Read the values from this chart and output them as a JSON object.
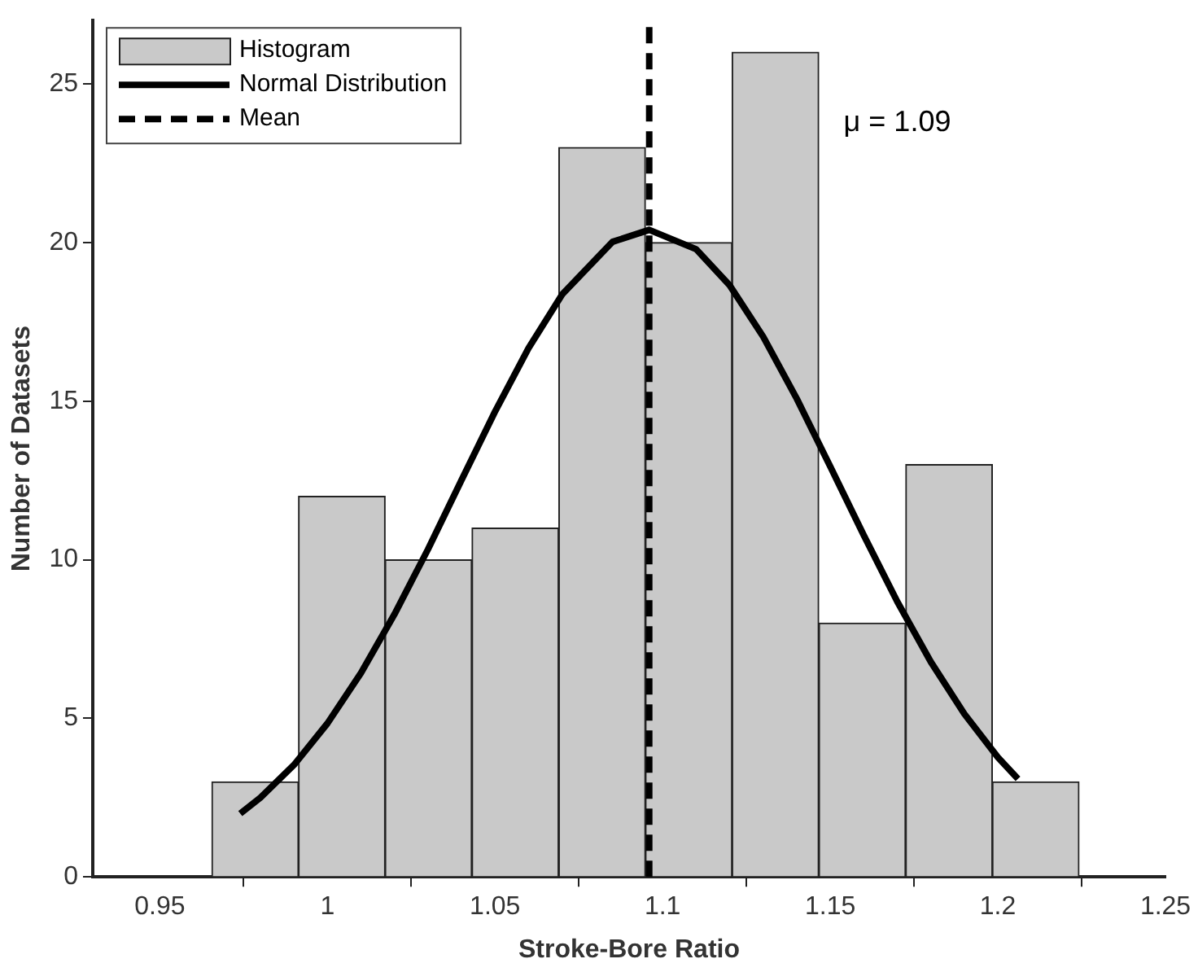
{
  "chart_data": {
    "type": "histogram",
    "xlabel": "Stroke-Bore Ratio",
    "ylabel": "Number of Datasets",
    "series": [
      {
        "name": "Histogram",
        "color": "#c9c9c9",
        "bins": [
          0.9655,
          0.9914,
          1.0172,
          1.0431,
          1.069,
          1.0949,
          1.1207,
          1.1466,
          1.1725,
          1.1984,
          1.2242
        ],
        "values": [
          3,
          12,
          10,
          11,
          23,
          20,
          26,
          8,
          13,
          3
        ]
      },
      {
        "name": "Normal Distribution",
        "type": "line",
        "color": "#000000",
        "line_style": "solid",
        "x": [
          0.974,
          0.98,
          0.99,
          1.0,
          1.01,
          1.02,
          1.03,
          1.04,
          1.05,
          1.06,
          1.07,
          1.085,
          1.096,
          1.11,
          1.12,
          1.13,
          1.14,
          1.15,
          1.16,
          1.17,
          1.18,
          1.19,
          1.2,
          1.206
        ],
        "values": [
          2.0,
          2.5,
          3.53,
          4.84,
          6.43,
          8.28,
          10.33,
          12.51,
          14.67,
          16.67,
          18.36,
          20.02,
          20.4,
          19.79,
          18.65,
          17.03,
          15.08,
          12.94,
          10.77,
          8.68,
          6.78,
          5.14,
          3.77,
          3.09
        ]
      },
      {
        "name": "Mean",
        "type": "line",
        "color": "#000000",
        "line_style": "dashed",
        "x": [
          1.096,
          1.096
        ],
        "values": [
          0,
          27
        ]
      }
    ],
    "annotations": [
      "μ = 1.09"
    ],
    "xlim": [
      0.93,
      1.25
    ],
    "xticks": [
      0.95,
      1,
      1.05,
      1.1,
      1.15,
      1.2,
      1.25
    ],
    "ylim": [
      0,
      27
    ],
    "yticks": [
      0,
      5,
      10,
      15,
      20,
      25
    ],
    "grid": false,
    "legend": "top left",
    "marker": "none"
  }
}
